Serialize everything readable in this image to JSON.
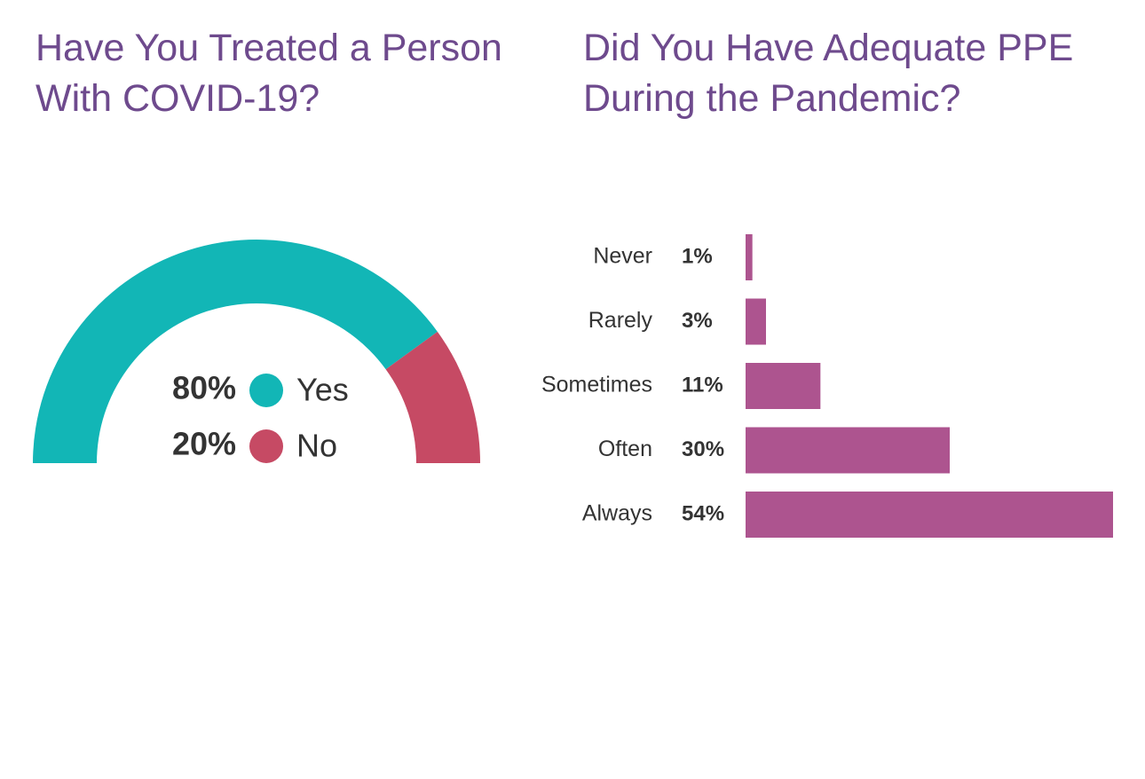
{
  "chart_data": [
    {
      "type": "pie",
      "title": "Have You Treated a Person With COVID-19?",
      "categories": [
        "Yes",
        "No"
      ],
      "values": [
        80,
        20
      ],
      "value_labels": [
        "80%",
        "20%"
      ],
      "colors": [
        "#12b6b6",
        "#c64a64"
      ]
    },
    {
      "type": "bar",
      "title": "Did You Have Adequate PPE During the Pandemic?",
      "categories": [
        "Never",
        "Rarely",
        "Sometimes",
        "Often",
        "Always"
      ],
      "values": [
        1,
        3,
        11,
        30,
        54
      ],
      "value_labels": [
        "1%",
        "3%",
        "11%",
        "30%",
        "54%"
      ],
      "color": "#ad548f"
    }
  ]
}
